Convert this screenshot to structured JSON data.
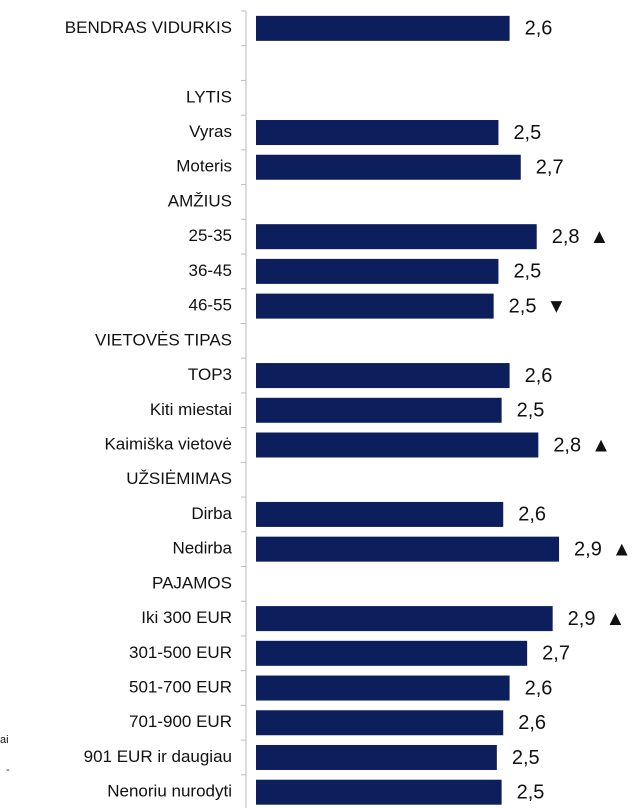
{
  "chart_data": {
    "type": "barh",
    "categories": [
      "BENDRAS VIDURKIS",
      null,
      "LYTIS",
      "Vyras",
      "Moteris",
      "AMŽIUS",
      "25-35",
      "36-45",
      "46-55",
      "VIETOVĖS TIPAS",
      "TOP3",
      "Kiti miestai",
      "Kaimiška vietovė",
      "UŽSIĖMIMAS",
      "Dirba",
      "Nedirba",
      "PAJAMOS",
      "Iki 300 EUR",
      "301-500 EUR",
      "501-700 EUR",
      "701-900 EUR",
      "901 EUR ir daugiau",
      "Nenoriu nurodyti"
    ],
    "values": [
      2.59,
      null,
      null,
      2.52,
      2.66,
      null,
      2.76,
      2.52,
      2.49,
      null,
      2.59,
      2.54,
      2.77,
      null,
      2.55,
      2.9,
      null,
      2.86,
      2.7,
      2.59,
      2.55,
      2.51,
      2.54
    ],
    "value_labels": [
      "2,6",
      null,
      null,
      "2,5",
      "2,7",
      null,
      "2,8",
      "2,5",
      "2,5",
      null,
      "2,6",
      "2,5",
      "2,8",
      null,
      "2,6",
      "2,9",
      null,
      "2,9",
      "2,7",
      "2,6",
      "2,6",
      "2,5",
      "2,5"
    ],
    "markers": [
      null,
      null,
      null,
      null,
      null,
      null,
      "▲",
      null,
      "▼",
      null,
      null,
      null,
      "▲",
      null,
      null,
      "▲",
      null,
      "▲",
      null,
      null,
      null,
      null,
      null
    ],
    "side_notes": [
      "ai",
      "-"
    ],
    "color": "#0c1f5c",
    "xlim": [
      1,
      3
    ]
  }
}
